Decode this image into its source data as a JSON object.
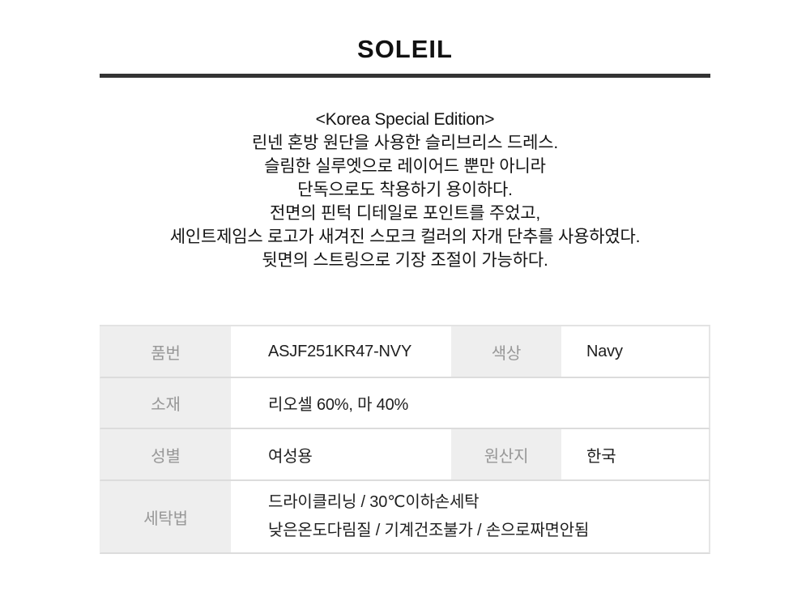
{
  "brand": "SOLEIL",
  "description": {
    "lines": [
      "<Korea Special Edition>",
      "린넨 혼방 원단을 사용한 슬리브리스 드레스.",
      "슬림한 실루엣으로 레이어드 뿐만 아니라",
      "단독으로도 착용하기 용이하다.",
      "전면의 핀턱 디테일로 포인트를 주었고,",
      "세인트제임스 로고가 새겨진 스모크 컬러의 자개 단추를 사용하였다.",
      "뒷면의 스트링으로 기장 조절이 가능하다."
    ]
  },
  "spec_table": {
    "product_no": {
      "label": "품번",
      "value": "ASJF251KR47-NVY"
    },
    "color": {
      "label": "색상",
      "value": "Navy"
    },
    "material": {
      "label": "소재",
      "value": "리오셀 60%, 마 40%"
    },
    "gender": {
      "label": "성별",
      "value": "여성용"
    },
    "origin": {
      "label": "원산지",
      "value": "한국"
    },
    "care": {
      "label": "세탁법",
      "lines": [
        "드라이클리닝 / 30℃이하손세탁",
        "낮은온도다림질 / 기계건조불가 / 손으로짜면안됨"
      ]
    }
  },
  "colors": {
    "divider": "#333333",
    "table_header_bg": "#eeeeee",
    "table_header_text": "#979797",
    "table_border": "#dcdcdc",
    "body_text": "#131313"
  }
}
